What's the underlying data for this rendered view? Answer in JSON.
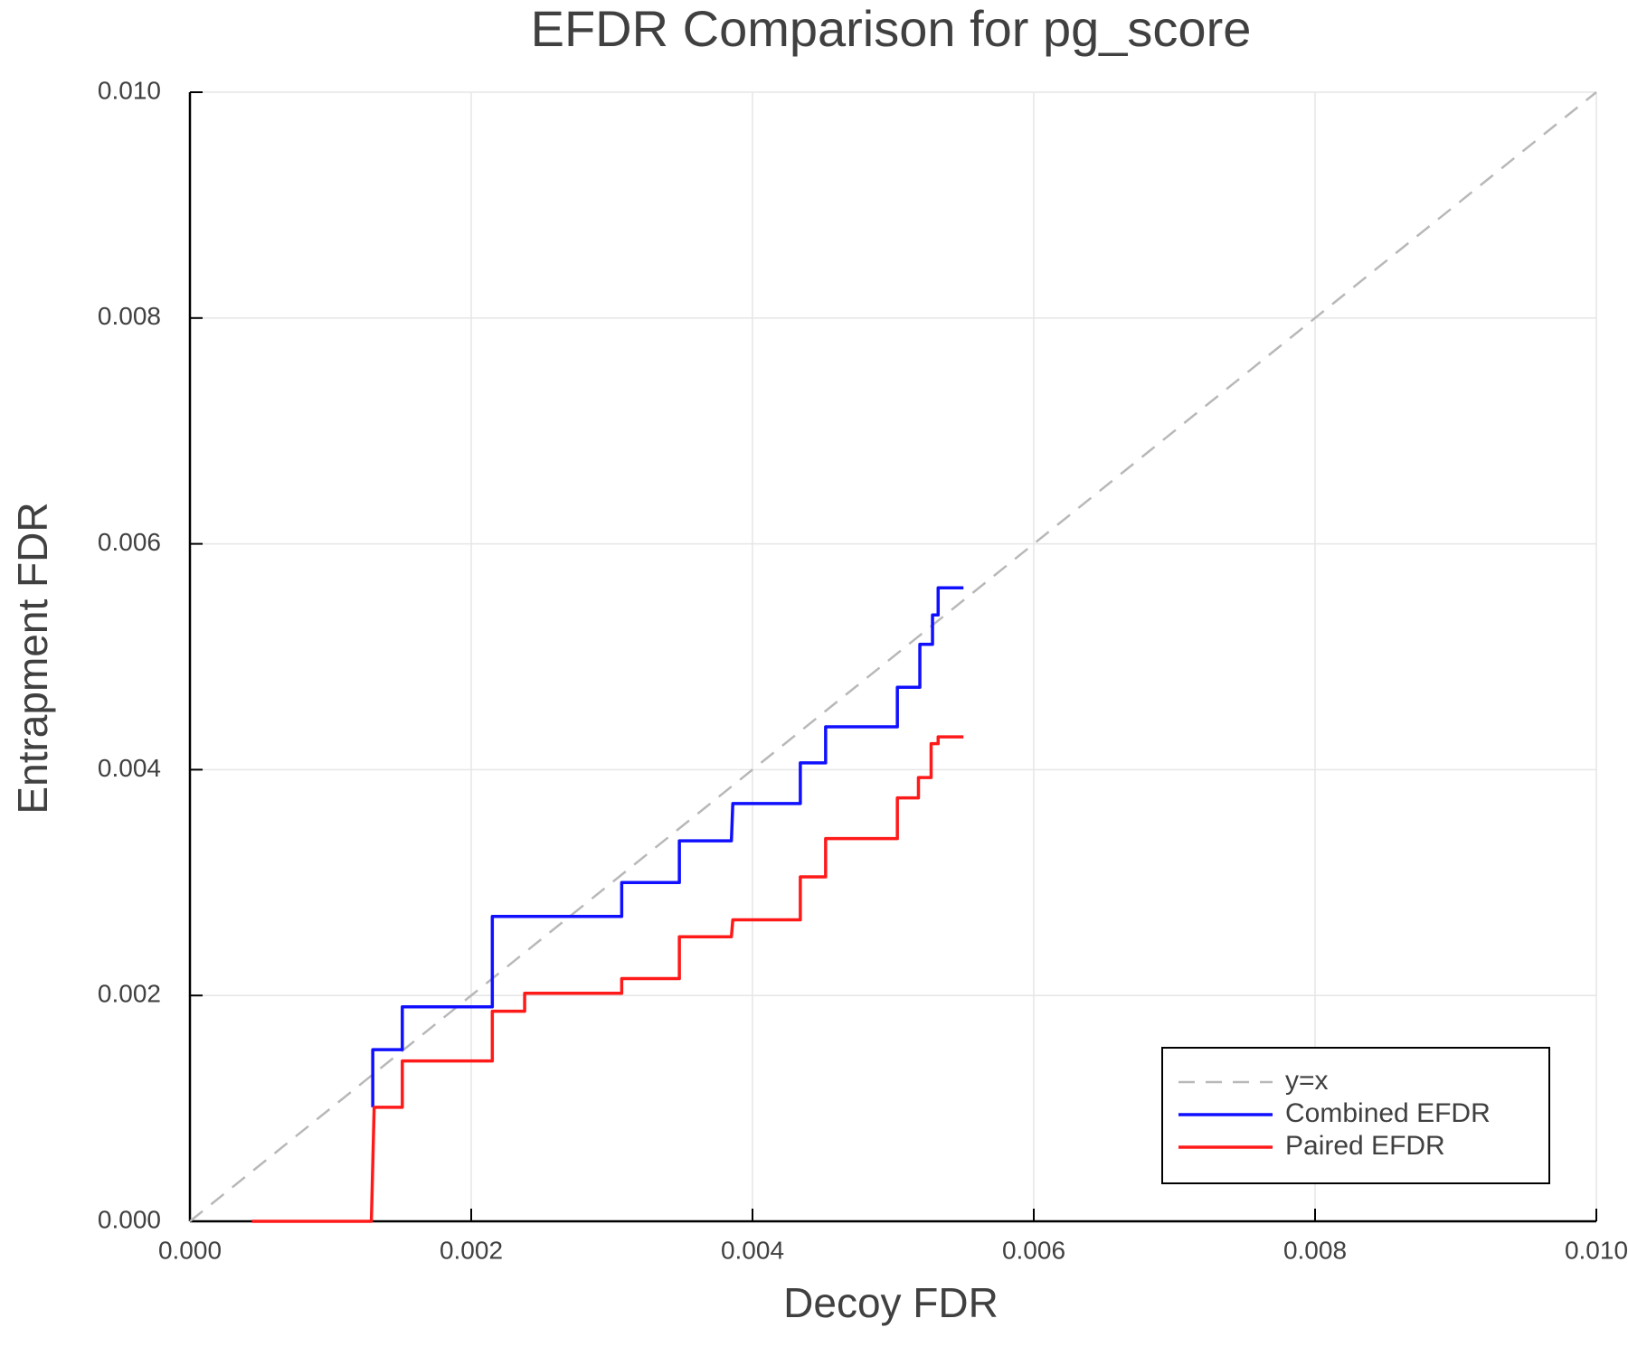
{
  "chart_data": {
    "type": "line",
    "title": "EFDR Comparison for pg_score",
    "x_label": "Decoy FDR",
    "y_label": "Entrapment FDR",
    "xlim": [
      0,
      0.01
    ],
    "ylim": [
      0,
      0.01
    ],
    "xticks": [
      {
        "value": 0,
        "label": "0.000"
      },
      {
        "value": 0.002,
        "label": "0.002"
      },
      {
        "value": 0.004,
        "label": "0.004"
      },
      {
        "value": 0.006,
        "label": "0.006"
      },
      {
        "value": 0.008,
        "label": "0.008"
      },
      {
        "value": 0.01,
        "label": "0.010"
      }
    ],
    "yticks": [
      {
        "value": 0,
        "label": "0.000"
      },
      {
        "value": 0.002,
        "label": "0.002"
      },
      {
        "value": 0.004,
        "label": "0.004"
      },
      {
        "value": 0.006,
        "label": "0.006"
      },
      {
        "value": 0.008,
        "label": "0.008"
      },
      {
        "value": 0.01,
        "label": "0.010"
      }
    ],
    "grid": true,
    "legend": "lower right",
    "series": [
      {
        "name": "y=x",
        "color": "#b8b8b8",
        "dashed": true,
        "x": [
          0,
          0.01
        ],
        "values": [
          0,
          0.01
        ]
      },
      {
        "name": "Combined EFDR",
        "color": "#1010ff",
        "dashed": false,
        "x": [
          0.0013,
          0.0013,
          0.00151,
          0.00151,
          0.00215,
          0.00215,
          0.00307,
          0.00307,
          0.00348,
          0.00348,
          0.00385,
          0.00386,
          0.00434,
          0.00434,
          0.00437,
          0.00452,
          0.00452,
          0.00503,
          0.00503,
          0.00519,
          0.00519,
          0.00528,
          0.00528,
          0.00532,
          0.00532,
          0.0055
        ],
        "values": [
          0.00101,
          0.00152,
          0.00152,
          0.0019,
          0.0019,
          0.0027,
          0.0027,
          0.003,
          0.003,
          0.00337,
          0.00337,
          0.0037,
          0.0037,
          0.00406,
          0.00406,
          0.00406,
          0.00438,
          0.00438,
          0.00473,
          0.00473,
          0.00511,
          0.00511,
          0.00537,
          0.00537,
          0.00561,
          0.00561
        ]
      },
      {
        "name": "Paired EFDR",
        "color": "#ff1a1a",
        "dashed": false,
        "x": [
          0.00044,
          0.00129,
          0.00131,
          0.00151,
          0.00151,
          0.00215,
          0.00215,
          0.00238,
          0.00238,
          0.00307,
          0.00307,
          0.00348,
          0.00348,
          0.00385,
          0.00386,
          0.00434,
          0.00434,
          0.00437,
          0.00452,
          0.00452,
          0.00503,
          0.00503,
          0.00518,
          0.00518,
          0.00527,
          0.00527,
          0.00532,
          0.00532,
          0.0055
        ],
        "values": [
          0,
          0,
          0.00101,
          0.00101,
          0.00142,
          0.00142,
          0.00186,
          0.00186,
          0.00202,
          0.00202,
          0.00215,
          0.00215,
          0.00252,
          0.00252,
          0.00267,
          0.00267,
          0.00305,
          0.00305,
          0.00305,
          0.00339,
          0.00339,
          0.00375,
          0.00375,
          0.00393,
          0.00393,
          0.00423,
          0.00423,
          0.00429,
          0.00429
        ]
      }
    ]
  }
}
